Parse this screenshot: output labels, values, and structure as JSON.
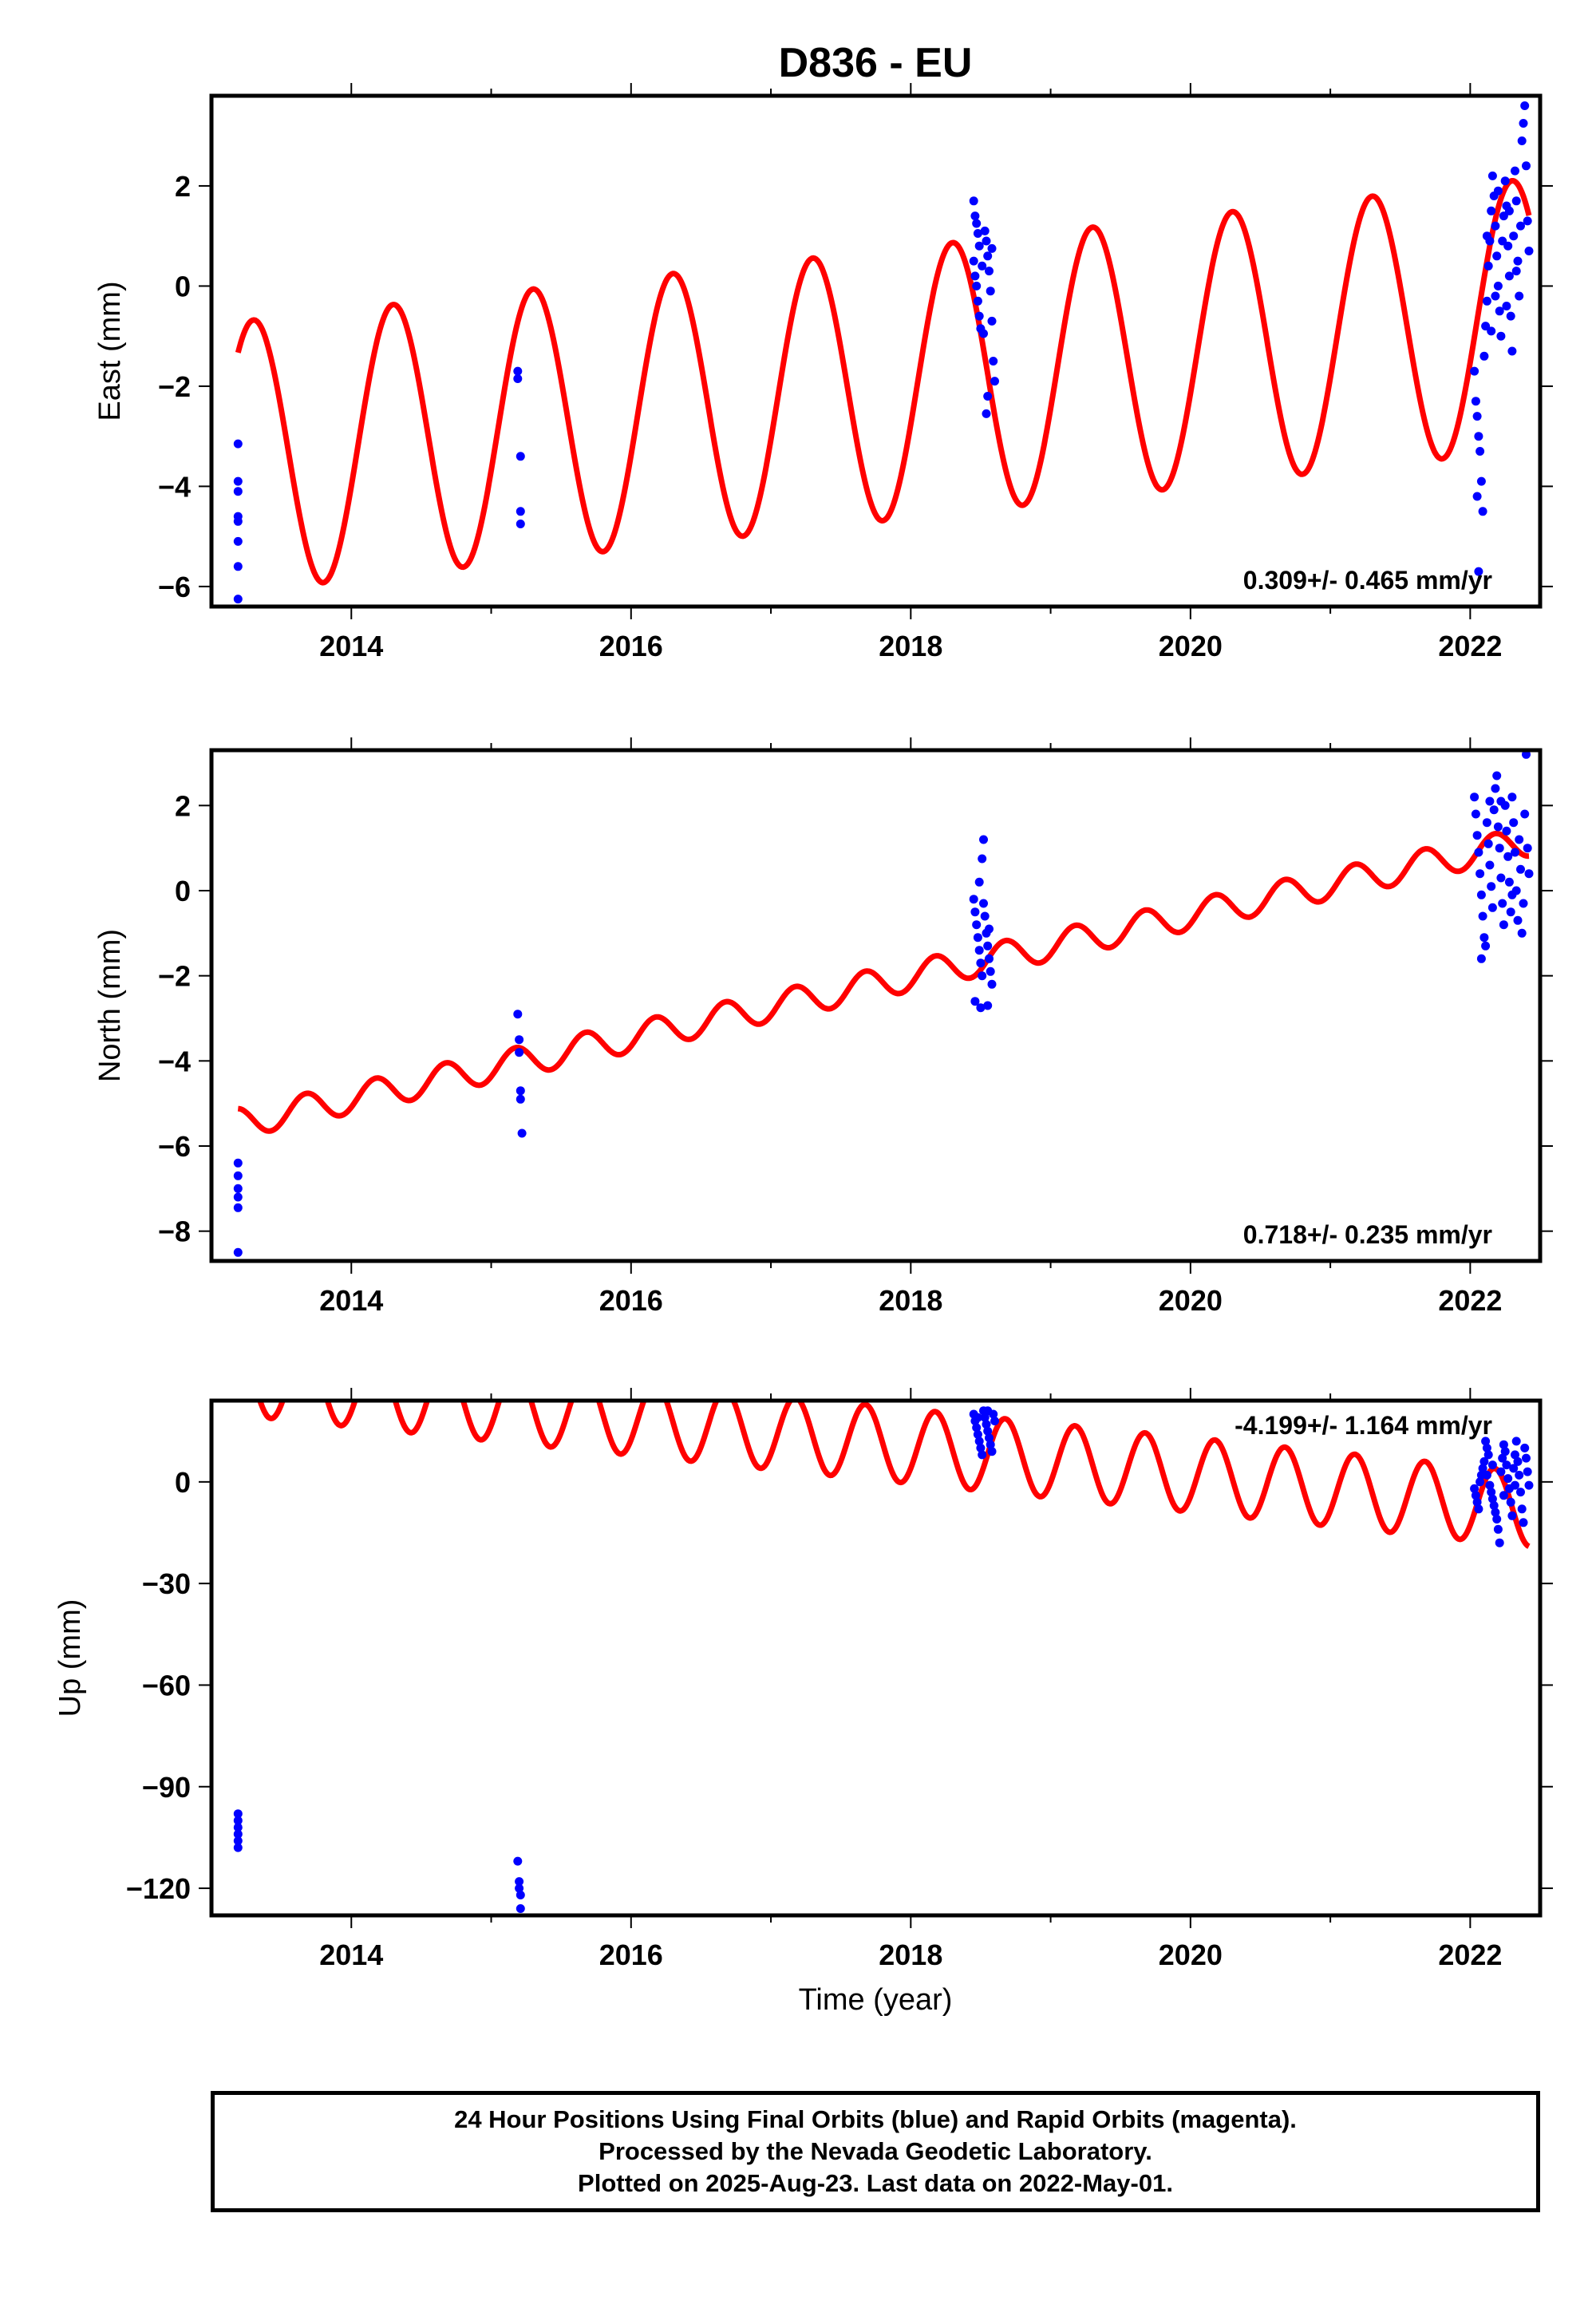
{
  "title": "D836 - EU",
  "xlabel": "Time (year)",
  "colors": {
    "final_orbits": "#0000ff",
    "model": "#ff0000"
  },
  "footer": {
    "line1": "24 Hour Positions Using Final Orbits (blue) and Rapid Orbits (magenta).",
    "line2": "Processed by the Nevada Geodetic Laboratory.",
    "line3": "Plotted on 2025-Aug-23. Last data on 2022-May-01."
  },
  "chart_data": [
    {
      "type": "scatter",
      "component": "east",
      "ylabel": "East (mm)",
      "xlim": [
        2013.0,
        2022.5
      ],
      "ylim": [
        -6.4,
        3.8
      ],
      "xticks": [
        2014,
        2016,
        2018,
        2020,
        2022
      ],
      "yticks": [
        -6,
        -4,
        -2,
        0,
        2
      ],
      "rate_label": "0.309+/- 0.465 mm/yr",
      "rate_position": "bottom-right",
      "series": [
        {
          "kind": "observations",
          "points": [
            [
              2013.19,
              -3.15
            ],
            [
              2013.19,
              -3.9
            ],
            [
              2013.19,
              -4.1
            ],
            [
              2013.19,
              -4.6
            ],
            [
              2013.19,
              -4.7
            ],
            [
              2013.19,
              -5.1
            ],
            [
              2013.19,
              -5.6
            ],
            [
              2013.19,
              -6.25
            ],
            [
              2015.19,
              -1.7
            ],
            [
              2015.19,
              -1.85
            ],
            [
              2015.21,
              -3.4
            ],
            [
              2015.21,
              -4.5
            ],
            [
              2015.21,
              -4.75
            ],
            [
              2018.45,
              1.7
            ],
            [
              2018.46,
              1.4
            ],
            [
              2018.47,
              1.25
            ],
            [
              2018.48,
              1.05
            ],
            [
              2018.49,
              0.8
            ],
            [
              2018.45,
              0.5
            ],
            [
              2018.46,
              0.2
            ],
            [
              2018.47,
              0.0
            ],
            [
              2018.48,
              -0.3
            ],
            [
              2018.49,
              -0.6
            ],
            [
              2018.5,
              -0.85
            ],
            [
              2018.52,
              -0.95
            ],
            [
              2018.53,
              1.1
            ],
            [
              2018.54,
              0.9
            ],
            [
              2018.55,
              0.6
            ],
            [
              2018.56,
              0.3
            ],
            [
              2018.57,
              -0.1
            ],
            [
              2018.58,
              -0.7
            ],
            [
              2018.59,
              -1.5
            ],
            [
              2018.6,
              -1.9
            ],
            [
              2018.55,
              -2.2
            ],
            [
              2018.54,
              -2.55
            ],
            [
              2018.51,
              0.4
            ],
            [
              2018.58,
              0.75
            ],
            [
              2022.03,
              -1.7
            ],
            [
              2022.04,
              -2.3
            ],
            [
              2022.05,
              -2.6
            ],
            [
              2022.06,
              -3.0
            ],
            [
              2022.07,
              -3.3
            ],
            [
              2022.08,
              -3.9
            ],
            [
              2022.05,
              -4.2
            ],
            [
              2022.09,
              -4.5
            ],
            [
              2022.06,
              -5.7
            ],
            [
              2022.1,
              -1.4
            ],
            [
              2022.11,
              -0.8
            ],
            [
              2022.12,
              -0.3
            ],
            [
              2022.13,
              0.4
            ],
            [
              2022.14,
              0.9
            ],
            [
              2022.15,
              1.5
            ],
            [
              2022.16,
              2.2
            ],
            [
              2022.17,
              1.8
            ],
            [
              2022.18,
              1.2
            ],
            [
              2022.19,
              0.6
            ],
            [
              2022.2,
              0.0
            ],
            [
              2022.21,
              -0.5
            ],
            [
              2022.22,
              -1.0
            ],
            [
              2022.23,
              0.9
            ],
            [
              2022.24,
              1.4
            ],
            [
              2022.25,
              2.1
            ],
            [
              2022.26,
              1.6
            ],
            [
              2022.27,
              0.8
            ],
            [
              2022.28,
              0.2
            ],
            [
              2022.29,
              -0.6
            ],
            [
              2022.3,
              -1.3
            ],
            [
              2022.31,
              1.0
            ],
            [
              2022.32,
              2.3
            ],
            [
              2022.33,
              1.7
            ],
            [
              2022.34,
              0.5
            ],
            [
              2022.35,
              -0.2
            ],
            [
              2022.36,
              1.2
            ],
            [
              2022.37,
              2.9
            ],
            [
              2022.38,
              3.25
            ],
            [
              2022.39,
              3.6
            ],
            [
              2022.4,
              2.4
            ],
            [
              2022.41,
              1.3
            ],
            [
              2022.42,
              0.7
            ],
            [
              2022.15,
              -0.9
            ],
            [
              2022.18,
              -0.2
            ],
            [
              2022.26,
              -0.4
            ],
            [
              2022.33,
              0.3
            ],
            [
              2022.12,
              1.0
            ],
            [
              2022.2,
              1.9
            ],
            [
              2022.28,
              1.5
            ]
          ]
        },
        {
          "kind": "model",
          "curve": {
            "x_start": 2013.19,
            "x_end": 2022.42,
            "intercept_at_2013": -3.47,
            "rate": 0.309,
            "amplitude": 2.7,
            "period_years": 1.0,
            "phase_years": 0.05
          }
        }
      ]
    },
    {
      "type": "scatter",
      "component": "north",
      "ylabel": "North (mm)",
      "xlim": [
        2013.0,
        2022.5
      ],
      "ylim": [
        -8.7,
        3.3
      ],
      "xticks": [
        2014,
        2016,
        2018,
        2020,
        2022
      ],
      "yticks": [
        -8,
        -6,
        -4,
        -2,
        0,
        2
      ],
      "rate_label": "0.718+/- 0.235 mm/yr",
      "rate_position": "bottom-right",
      "series": [
        {
          "kind": "observations",
          "points": [
            [
              2013.19,
              -6.4
            ],
            [
              2013.19,
              -6.7
            ],
            [
              2013.19,
              -7.0
            ],
            [
              2013.19,
              -7.2
            ],
            [
              2013.19,
              -7.45
            ],
            [
              2013.19,
              -8.5
            ],
            [
              2015.19,
              -2.9
            ],
            [
              2015.2,
              -3.5
            ],
            [
              2015.2,
              -3.8
            ],
            [
              2015.21,
              -4.7
            ],
            [
              2015.21,
              -4.9
            ],
            [
              2015.22,
              -5.7
            ],
            [
              2018.45,
              -0.2
            ],
            [
              2018.46,
              -0.5
            ],
            [
              2018.47,
              -0.8
            ],
            [
              2018.48,
              -1.1
            ],
            [
              2018.49,
              -1.4
            ],
            [
              2018.5,
              -1.7
            ],
            [
              2018.51,
              -2.0
            ],
            [
              2018.52,
              -0.3
            ],
            [
              2018.53,
              -0.6
            ],
            [
              2018.54,
              -1.0
            ],
            [
              2018.55,
              -1.3
            ],
            [
              2018.56,
              -1.6
            ],
            [
              2018.57,
              -1.9
            ],
            [
              2018.58,
              -2.2
            ],
            [
              2018.46,
              -2.6
            ],
            [
              2018.5,
              -2.75
            ],
            [
              2018.55,
              -2.7
            ],
            [
              2018.52,
              1.2
            ],
            [
              2018.51,
              0.75
            ],
            [
              2018.49,
              0.2
            ],
            [
              2018.56,
              -0.9
            ],
            [
              2022.03,
              2.2
            ],
            [
              2022.04,
              1.8
            ],
            [
              2022.05,
              1.3
            ],
            [
              2022.06,
              0.9
            ],
            [
              2022.07,
              0.4
            ],
            [
              2022.08,
              -0.1
            ],
            [
              2022.09,
              -0.6
            ],
            [
              2022.1,
              -1.1
            ],
            [
              2022.08,
              -1.6
            ],
            [
              2022.11,
              -1.3
            ],
            [
              2022.12,
              1.6
            ],
            [
              2022.13,
              1.1
            ],
            [
              2022.14,
              0.6
            ],
            [
              2022.15,
              0.1
            ],
            [
              2022.16,
              -0.4
            ],
            [
              2022.17,
              1.9
            ],
            [
              2022.18,
              2.4
            ],
            [
              2022.19,
              2.7
            ],
            [
              2022.2,
              1.5
            ],
            [
              2022.21,
              1.0
            ],
            [
              2022.22,
              0.3
            ],
            [
              2022.23,
              -0.3
            ],
            [
              2022.24,
              -0.8
            ],
            [
              2022.25,
              2.0
            ],
            [
              2022.26,
              1.4
            ],
            [
              2022.27,
              0.8
            ],
            [
              2022.28,
              0.2
            ],
            [
              2022.29,
              -0.5
            ],
            [
              2022.3,
              2.2
            ],
            [
              2022.31,
              1.6
            ],
            [
              2022.32,
              0.9
            ],
            [
              2022.33,
              0.0
            ],
            [
              2022.34,
              -0.7
            ],
            [
              2022.35,
              1.2
            ],
            [
              2022.36,
              0.5
            ],
            [
              2022.37,
              -1.0
            ],
            [
              2022.38,
              -0.3
            ],
            [
              2022.39,
              1.8
            ],
            [
              2022.4,
              3.2
            ],
            [
              2022.41,
              1.0
            ],
            [
              2022.42,
              0.4
            ],
            [
              2022.14,
              2.1
            ],
            [
              2022.22,
              2.1
            ],
            [
              2022.3,
              -0.1
            ]
          ]
        },
        {
          "kind": "model",
          "curve": {
            "x_start": 2013.19,
            "x_end": 2022.42,
            "intercept_at_2013": -5.6,
            "rate": 0.718,
            "amplitude": 0.35,
            "period_years": 0.5,
            "phase_years": 0.05
          }
        }
      ]
    },
    {
      "type": "scatter",
      "component": "up",
      "ylabel": "Up (mm)",
      "xlim": [
        2013.0,
        2022.5
      ],
      "ylim": [
        -128,
        24
      ],
      "xticks": [
        2014,
        2016,
        2018,
        2020,
        2022
      ],
      "yticks": [
        -120,
        -90,
        -60,
        -30,
        0
      ],
      "rate_label": "-4.199+/- 1.164 mm/yr",
      "rate_position": "top-right",
      "series": [
        {
          "kind": "observations",
          "points": [
            [
              2013.19,
              -98
            ],
            [
              2013.19,
              -100
            ],
            [
              2013.19,
              -102
            ],
            [
              2013.19,
              -104
            ],
            [
              2013.19,
              -106
            ],
            [
              2013.19,
              -108
            ],
            [
              2015.19,
              -112
            ],
            [
              2015.2,
              -118
            ],
            [
              2015.2,
              -120
            ],
            [
              2015.21,
              -122
            ],
            [
              2015.21,
              -126
            ],
            [
              2018.45,
              20
            ],
            [
              2018.46,
              18
            ],
            [
              2018.47,
              16
            ],
            [
              2018.48,
              14
            ],
            [
              2018.49,
              12
            ],
            [
              2018.5,
              10
            ],
            [
              2018.51,
              8
            ],
            [
              2018.52,
              21
            ],
            [
              2018.53,
              19
            ],
            [
              2018.54,
              17
            ],
            [
              2018.55,
              15
            ],
            [
              2018.56,
              13
            ],
            [
              2018.57,
              11
            ],
            [
              2018.58,
              9
            ],
            [
              2018.59,
              20
            ],
            [
              2018.6,
              18
            ],
            [
              2018.48,
              19
            ],
            [
              2018.55,
              21
            ],
            [
              2022.03,
              -2
            ],
            [
              2022.04,
              -4
            ],
            [
              2022.05,
              -6
            ],
            [
              2022.06,
              -8
            ],
            [
              2022.07,
              0
            ],
            [
              2022.08,
              2
            ],
            [
              2022.09,
              4
            ],
            [
              2022.1,
              6
            ],
            [
              2022.11,
              12
            ],
            [
              2022.12,
              10
            ],
            [
              2022.13,
              8
            ],
            [
              2022.14,
              -1
            ],
            [
              2022.15,
              -3
            ],
            [
              2022.16,
              -5
            ],
            [
              2022.17,
              -7
            ],
            [
              2022.18,
              -9
            ],
            [
              2022.19,
              -11
            ],
            [
              2022.2,
              -14
            ],
            [
              2022.21,
              -18
            ],
            [
              2022.22,
              3
            ],
            [
              2022.23,
              7
            ],
            [
              2022.24,
              11
            ],
            [
              2022.25,
              9
            ],
            [
              2022.26,
              5
            ],
            [
              2022.27,
              1
            ],
            [
              2022.28,
              -2
            ],
            [
              2022.29,
              -6
            ],
            [
              2022.3,
              -10
            ],
            [
              2022.31,
              4
            ],
            [
              2022.32,
              8
            ],
            [
              2022.33,
              12
            ],
            [
              2022.34,
              6
            ],
            [
              2022.35,
              2
            ],
            [
              2022.36,
              -3
            ],
            [
              2022.37,
              -8
            ],
            [
              2022.38,
              -12
            ],
            [
              2022.39,
              10
            ],
            [
              2022.4,
              7
            ],
            [
              2022.41,
              3
            ],
            [
              2022.42,
              -1
            ],
            [
              2022.16,
              5
            ],
            [
              2022.24,
              -4
            ],
            [
              2022.32,
              -1
            ],
            [
              2022.12,
              2
            ]
          ]
        },
        {
          "kind": "model",
          "curve": {
            "x_start": 2013.19,
            "x_end": 2022.42,
            "intercept_at_2013": 31.5,
            "rate": -4.199,
            "amplitude": 11.0,
            "period_years": 0.5,
            "phase_years": 0.05
          }
        }
      ]
    }
  ]
}
